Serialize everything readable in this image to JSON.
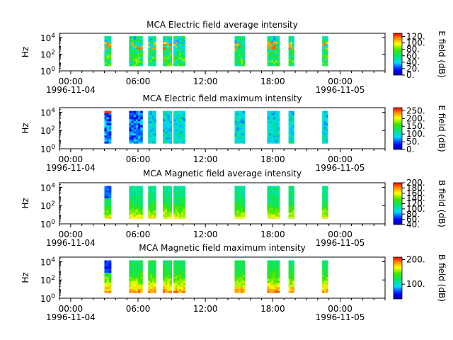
{
  "chart_data": [
    {
      "type": "heatmap",
      "title": "MCA  Electric field average intensity",
      "ylabel": "Hz",
      "y_ticks": [
        {
          "base": "10",
          "exp": "0"
        },
        {
          "base": "10",
          "exp": "2"
        },
        {
          "base": "10",
          "exp": "4"
        }
      ],
      "x_ticks": [
        "00:00",
        "06:00",
        "12:00",
        "18:00",
        "00:00"
      ],
      "x_dates": [
        "1996-11-04",
        "1996-11-05"
      ],
      "colorbar": {
        "label": "E field (dB)",
        "range": [
          0,
          130
        ],
        "ticks": [
          "0.",
          "20.",
          "40.",
          "60.",
          "80.",
          "100.",
          "120."
        ],
        "tick_values": [
          0,
          20,
          40,
          60,
          80,
          100,
          120
        ]
      },
      "profile": "efield_avg"
    },
    {
      "type": "heatmap",
      "title": "MCA  Electric field maximum intensity",
      "ylabel": "Hz",
      "y_ticks": [
        {
          "base": "10",
          "exp": "0"
        },
        {
          "base": "10",
          "exp": "2"
        },
        {
          "base": "10",
          "exp": "4"
        }
      ],
      "x_ticks": [
        "00:00",
        "06:00",
        "12:00",
        "18:00",
        "00:00"
      ],
      "x_dates": [
        "1996-11-04",
        "1996-11-05"
      ],
      "colorbar": {
        "label": "E field (dB)",
        "range": [
          0,
          270
        ],
        "ticks": [
          "0.",
          "50.",
          "100.",
          "150.",
          "200.",
          "250."
        ],
        "tick_values": [
          0,
          50,
          100,
          150,
          200,
          250
        ]
      },
      "profile": "efield_max"
    },
    {
      "type": "heatmap",
      "title": "MCA  Magnetic field average intensity",
      "ylabel": "Hz",
      "y_ticks": [
        {
          "base": "10",
          "exp": "0"
        },
        {
          "base": "10",
          "exp": "2"
        },
        {
          "base": "10",
          "exp": "4"
        }
      ],
      "x_ticks": [
        "00:00",
        "06:00",
        "12:00",
        "18:00",
        "00:00"
      ],
      "x_dates": [
        "1996-11-04",
        "1996-11-05"
      ],
      "colorbar": {
        "label": "B field (dB)",
        "range": [
          40,
          200
        ],
        "ticks": [
          "40.",
          "60.",
          "80.",
          "100.",
          "120.",
          "140.",
          "160.",
          "180.",
          "200."
        ],
        "tick_values": [
          40,
          60,
          80,
          100,
          120,
          140,
          160,
          180,
          200
        ]
      },
      "profile": "bfield_avg"
    },
    {
      "type": "heatmap",
      "title": "MCA  Magnetic field maximum intensity",
      "ylabel": "Hz",
      "y_ticks": [
        {
          "base": "10",
          "exp": "0"
        },
        {
          "base": "10",
          "exp": "2"
        },
        {
          "base": "10",
          "exp": "4"
        }
      ],
      "x_ticks": [
        "00:00",
        "06:00",
        "12:00",
        "18:00",
        "00:00"
      ],
      "x_dates": [
        "1996-11-04",
        "1996-11-05"
      ],
      "colorbar": {
        "label": "B field (dB)",
        "range": [
          40,
          210
        ],
        "ticks": [
          "100.",
          "200."
        ],
        "tick_values": [
          100,
          200
        ]
      },
      "profile": "bfield_max"
    }
  ],
  "shared": {
    "x_range_hours": [
      -1,
      28
    ],
    "y_range_log10": [
      0,
      4.5
    ],
    "data_bands_hours": [
      [
        3.0,
        3.6
      ],
      [
        5.2,
        6.4
      ],
      [
        6.9,
        7.6
      ],
      [
        8.2,
        9.0
      ],
      [
        9.15,
        10.2
      ],
      [
        14.6,
        15.5
      ],
      [
        17.5,
        18.6
      ],
      [
        19.4,
        19.9
      ],
      [
        22.4,
        22.9
      ]
    ]
  }
}
